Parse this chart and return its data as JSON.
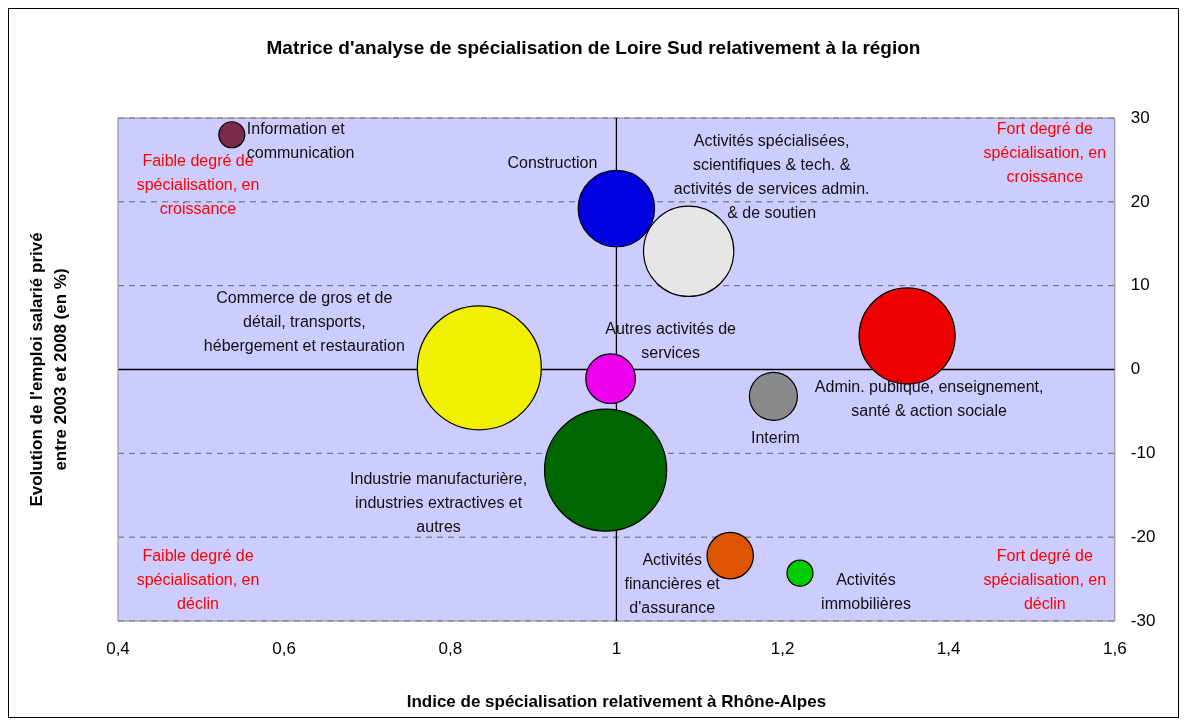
{
  "chart_data": {
    "type": "bubble",
    "title": "Matrice d'analyse de spécialisation de Loire Sud relativement à la région",
    "xlabel": "Indice de spécialisation relativement à Rhône-Alpes",
    "ylabel": "Evolution de l'emploi salarié privé entre 2003 et 2008 (en %)",
    "xlim": [
      0.4,
      1.6
    ],
    "xticks": [
      {
        "value": 0.4,
        "label": "0,4"
      },
      {
        "value": 0.6,
        "label": "0,6"
      },
      {
        "value": 0.8,
        "label": "0,8"
      },
      1,
      {
        "value": 1.2,
        "label": "1,2"
      },
      {
        "value": 1.4,
        "label": "1,4"
      },
      {
        "value": 1.6,
        "label": "1,6"
      }
    ],
    "ylim": [
      -30,
      30
    ],
    "yticks": [
      -30,
      -20,
      -10,
      0,
      10,
      20,
      30
    ],
    "grid": "y",
    "line_style": "dashed",
    "legend": false,
    "series": [
      {
        "name": "Information et communication",
        "color": "#7a2a4a",
        "x": [
          0.537
        ],
        "values": [
          28.0
        ],
        "sizes": [
          0.044
        ]
      },
      {
        "name": "Construction",
        "color": "#0000e0",
        "x": [
          1.0
        ],
        "values": [
          19.2
        ],
        "sizes": [
          0.38
        ]
      },
      {
        "name": "Activités spécialisées, scientifiques & tech. & activités de services admin. & de soutien",
        "color": "#e6e6e6",
        "x": [
          1.087
        ],
        "values": [
          14.1
        ],
        "sizes": [
          0.53
        ]
      },
      {
        "name": "Commerce de gros et de détail, transports, hébergement et restauration",
        "color": "#f0f000",
        "x": [
          0.835
        ],
        "values": [
          0.2
        ],
        "sizes": [
          1
        ]
      },
      {
        "name": "Autres activités de services",
        "color": "#ee00ee",
        "x": [
          0.993
        ],
        "values": [
          -1.1
        ],
        "sizes": [
          0.16
        ]
      },
      {
        "name": "Admin. publique, enseignement, santé & action sociale",
        "color": "#ee0000",
        "x": [
          1.35
        ],
        "values": [
          4.0
        ],
        "sizes": [
          0.6
        ]
      },
      {
        "name": "Interim",
        "color": "#8a8a8a",
        "x": [
          1.189
        ],
        "values": [
          -3.2
        ],
        "sizes": [
          0.15
        ]
      },
      {
        "name": "Industrie manufacturière, industries extractives et autres",
        "color": "#006600",
        "x": [
          0.987
        ],
        "values": [
          -12.0
        ],
        "sizes": [
          0.97
        ]
      },
      {
        "name": "Activités financières et d'assurance",
        "color": "#dd5500",
        "x": [
          1.137
        ],
        "values": [
          -22.2
        ],
        "sizes": [
          0.14
        ]
      },
      {
        "name": "Activités immobilières",
        "color": "#00cc00",
        "x": [
          1.221
        ],
        "values": [
          -24.3
        ],
        "sizes": [
          0.044
        ]
      }
    ],
    "ref_lines": [
      {
        "axis": "x",
        "value": 1,
        "color": "#000000"
      }
    ],
    "annotations": [
      "Faible degré de spécialisation, en croissance",
      "Fort degré de spécialisation, en croissance",
      "Faible degré de spécialisation, en déclin",
      "Fort degré de spécialisation, en déclin"
    ]
  }
}
